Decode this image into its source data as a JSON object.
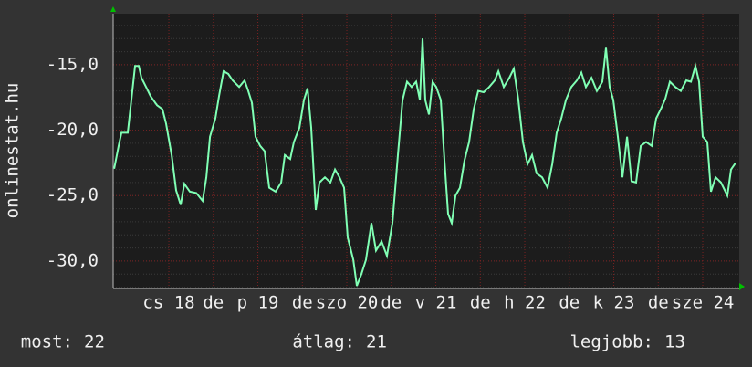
{
  "chart_data": {
    "type": "line",
    "y_label": "onlinestat.hu",
    "ylim": [
      -32.1,
      -11.1
    ],
    "yticks": [
      {
        "value": -15,
        "label": "-15,0"
      },
      {
        "value": -20,
        "label": "-20,0"
      },
      {
        "value": -25,
        "label": "-25,0"
      },
      {
        "value": -30,
        "label": "-30,0"
      }
    ],
    "yminorticks": [
      -32,
      -31,
      -30,
      -29,
      -28,
      -27,
      -26,
      -25,
      -24,
      -23,
      -22,
      -21,
      -20,
      -19,
      -18,
      -17,
      -16,
      -15,
      -14,
      -13,
      -12
    ],
    "xlim": [
      17.374,
      24.41
    ],
    "xticks": [
      {
        "value": 18,
        "label": "cs 18"
      },
      {
        "value": 18.5,
        "label": "de"
      },
      {
        "value": 19,
        "label": "p 19"
      },
      {
        "value": 19.5,
        "label": "de"
      },
      {
        "value": 20,
        "label": "szo 20"
      },
      {
        "value": 20.5,
        "label": "de"
      },
      {
        "value": 21,
        "label": "v 21"
      },
      {
        "value": 21.5,
        "label": "de"
      },
      {
        "value": 22,
        "label": "h 22"
      },
      {
        "value": 22.5,
        "label": "de"
      },
      {
        "value": 23,
        "label": "k 23"
      },
      {
        "value": 23.5,
        "label": "de"
      },
      {
        "value": 24,
        "label": "sze 24"
      }
    ],
    "grid": true,
    "x": [
      17.385,
      17.436,
      17.467,
      17.538,
      17.569,
      17.62,
      17.662,
      17.692,
      17.744,
      17.795,
      17.867,
      17.928,
      17.969,
      18.031,
      18.082,
      18.133,
      18.174,
      18.236,
      18.308,
      18.379,
      18.421,
      18.462,
      18.523,
      18.564,
      18.615,
      18.667,
      18.718,
      18.79,
      18.851,
      18.892,
      18.933,
      18.974,
      19.026,
      19.077,
      19.128,
      19.2,
      19.262,
      19.303,
      19.364,
      19.405,
      19.467,
      19.518,
      19.559,
      19.6,
      19.651,
      19.692,
      19.754,
      19.815,
      19.867,
      19.918,
      19.969,
      20.01,
      20.072,
      20.113,
      20.164,
      20.215,
      20.277,
      20.328,
      20.39,
      20.451,
      20.513,
      20.574,
      20.626,
      20.677,
      20.728,
      20.779,
      20.821,
      20.851,
      20.882,
      20.923,
      20.964,
      21.005,
      21.056,
      21.097,
      21.138,
      21.179,
      21.221,
      21.272,
      21.323,
      21.374,
      21.426,
      21.477,
      21.538,
      21.6,
      21.662,
      21.703,
      21.764,
      21.826,
      21.877,
      21.928,
      21.979,
      22.031,
      22.082,
      22.133,
      22.195,
      22.256,
      22.308,
      22.359,
      22.41,
      22.462,
      22.523,
      22.585,
      22.636,
      22.687,
      22.749,
      22.81,
      22.872,
      22.913,
      22.954,
      22.995,
      23.046,
      23.097,
      23.149,
      23.2,
      23.251,
      23.303,
      23.364,
      23.426,
      23.477,
      23.528,
      23.579,
      23.631,
      23.692,
      23.754,
      23.815,
      23.867,
      23.918,
      23.959,
      24.0,
      24.051,
      24.092,
      24.144,
      24.205,
      24.277,
      24.318,
      24.369
    ],
    "series": [
      {
        "color": "#80ffb4",
        "values": [
          -22.95,
          -21.2,
          -20.2,
          -20.2,
          -18.3,
          -15.1,
          -15.1,
          -16.0,
          -16.7,
          -17.4,
          -18.1,
          -18.4,
          -19.5,
          -21.9,
          -24.6,
          -25.7,
          -24.1,
          -24.7,
          -24.8,
          -25.4,
          -23.6,
          -20.5,
          -19.1,
          -17.4,
          -15.5,
          -15.7,
          -16.2,
          -16.7,
          -16.2,
          -17.0,
          -17.9,
          -20.5,
          -21.2,
          -21.6,
          -24.4,
          -24.7,
          -24.0,
          -21.9,
          -22.2,
          -20.9,
          -19.8,
          -17.7,
          -16.8,
          -19.8,
          -26.1,
          -24.0,
          -23.6,
          -24.0,
          -23.0,
          -23.6,
          -24.4,
          -28.2,
          -29.9,
          -31.9,
          -31.0,
          -29.9,
          -27.1,
          -29.2,
          -28.5,
          -29.6,
          -27.1,
          -21.9,
          -17.7,
          -16.3,
          -16.7,
          -16.3,
          -17.7,
          -13.0,
          -17.7,
          -18.8,
          -16.3,
          -16.7,
          -17.7,
          -22.3,
          -26.4,
          -27.1,
          -25.0,
          -24.4,
          -22.3,
          -20.9,
          -18.4,
          -17.0,
          -17.1,
          -16.7,
          -16.2,
          -15.5,
          -16.7,
          -16.0,
          -15.3,
          -17.7,
          -20.9,
          -22.6,
          -21.9,
          -23.3,
          -23.6,
          -24.4,
          -22.6,
          -20.2,
          -19.1,
          -17.7,
          -16.7,
          -16.2,
          -15.6,
          -16.7,
          -16.0,
          -17.0,
          -16.3,
          -13.7,
          -16.7,
          -17.7,
          -20.5,
          -23.6,
          -20.5,
          -23.9,
          -24.0,
          -21.2,
          -20.9,
          -21.2,
          -19.1,
          -18.4,
          -17.6,
          -16.3,
          -16.7,
          -17.0,
          -16.2,
          -16.3,
          -15.1,
          -16.3,
          -20.5,
          -20.9,
          -24.7,
          -23.6,
          -24.0,
          -25.0,
          -23.0,
          -22.5
        ]
      }
    ],
    "stats": [
      {
        "label": "most:",
        "value": 22
      },
      {
        "label": "átlag:",
        "value": 21
      },
      {
        "label": "legjobb:",
        "value": 13
      }
    ]
  }
}
